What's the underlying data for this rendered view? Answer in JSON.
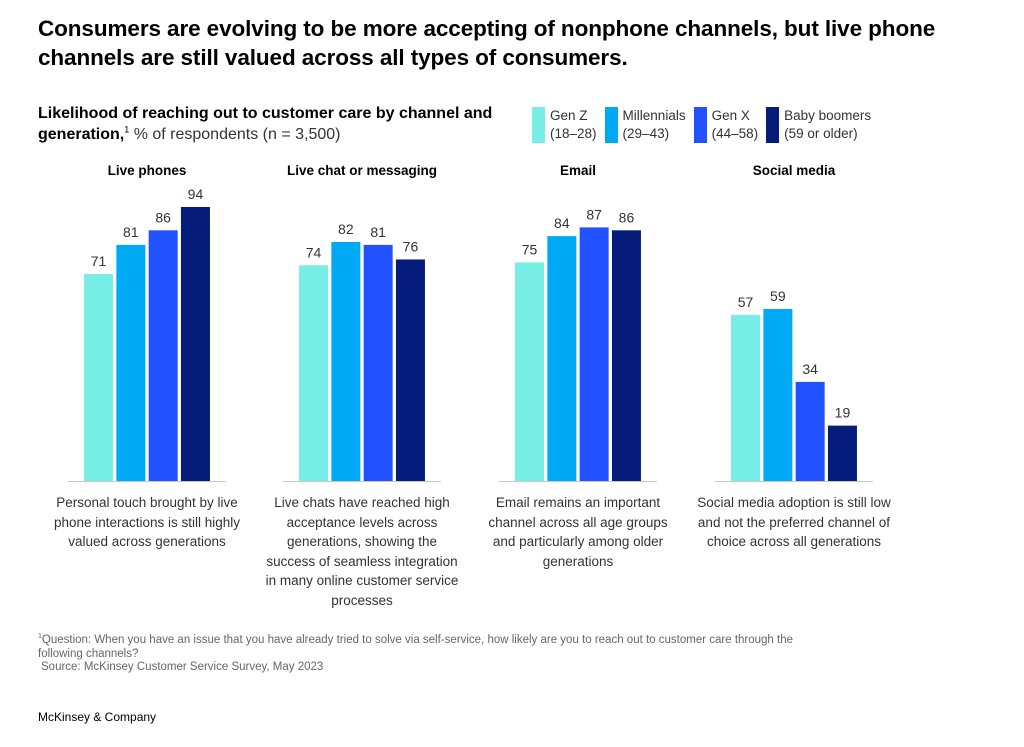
{
  "title": "Consumers are evolving to be more accepting of nonphone channels, but live phone channels are still valued across all types of consumers.",
  "subtitle": {
    "bold": "Likelihood of reaching out to customer care by channel and generation,",
    "footnote_marker": "1",
    "unit": " % of respondents (n = 3,500)"
  },
  "colors": {
    "gen_z": "#77EEE6",
    "millennials": "#00A9F4",
    "gen_x": "#2251FF",
    "baby_boomers": "#051C7A",
    "axis": "#C8C8C8"
  },
  "chart_data": {
    "type": "bar",
    "title": "Likelihood of reaching out to customer care by channel and generation, % of respondents (n = 3,500)",
    "categories": [
      "Live phones",
      "Live chat or messaging",
      "Email",
      "Social media"
    ],
    "series": [
      {
        "name": "Gen Z (18–28)",
        "color": "#77EEE6",
        "values": [
          71,
          74,
          75,
          57
        ]
      },
      {
        "name": "Millennials (29–43)",
        "color": "#00A9F4",
        "values": [
          81,
          82,
          84,
          59
        ]
      },
      {
        "name": "Gen X (44–58)",
        "color": "#2251FF",
        "values": [
          86,
          81,
          87,
          34
        ]
      },
      {
        "name": "Baby boomers (59 or older)",
        "color": "#051C7A",
        "values": [
          94,
          76,
          86,
          19
        ]
      }
    ],
    "xlabel": "",
    "ylabel": "% of respondents",
    "ylim": [
      0,
      100
    ],
    "grid": false,
    "legend_position": "top-right",
    "data_labels": true
  },
  "legend": [
    {
      "label": "Gen Z\n(18–28)"
    },
    {
      "label": "Millennials\n(29–43)"
    },
    {
      "label": "Gen X\n(44–58)"
    },
    {
      "label": "Baby boomers\n(59 or older)"
    }
  ],
  "notes": [
    "Personal touch brought by live phone interactions is still highly valued across generations",
    "Live chats have reached high acceptance levels across generations, showing the success of seamless integration in many online customer service processes",
    "Email remains an important channel across all age groups and particularly among older generations",
    "Social media adoption is still low and not the preferred channel of choice across all generations"
  ],
  "footnote": {
    "marker": "1",
    "question": "Question: When you have an issue that you have already tried to solve via self-service, how likely are you to reach out to customer care through the following channels?",
    "source": "Source: McKinsey Customer Service Survey, May 2023"
  },
  "brand": "McKinsey & Company"
}
